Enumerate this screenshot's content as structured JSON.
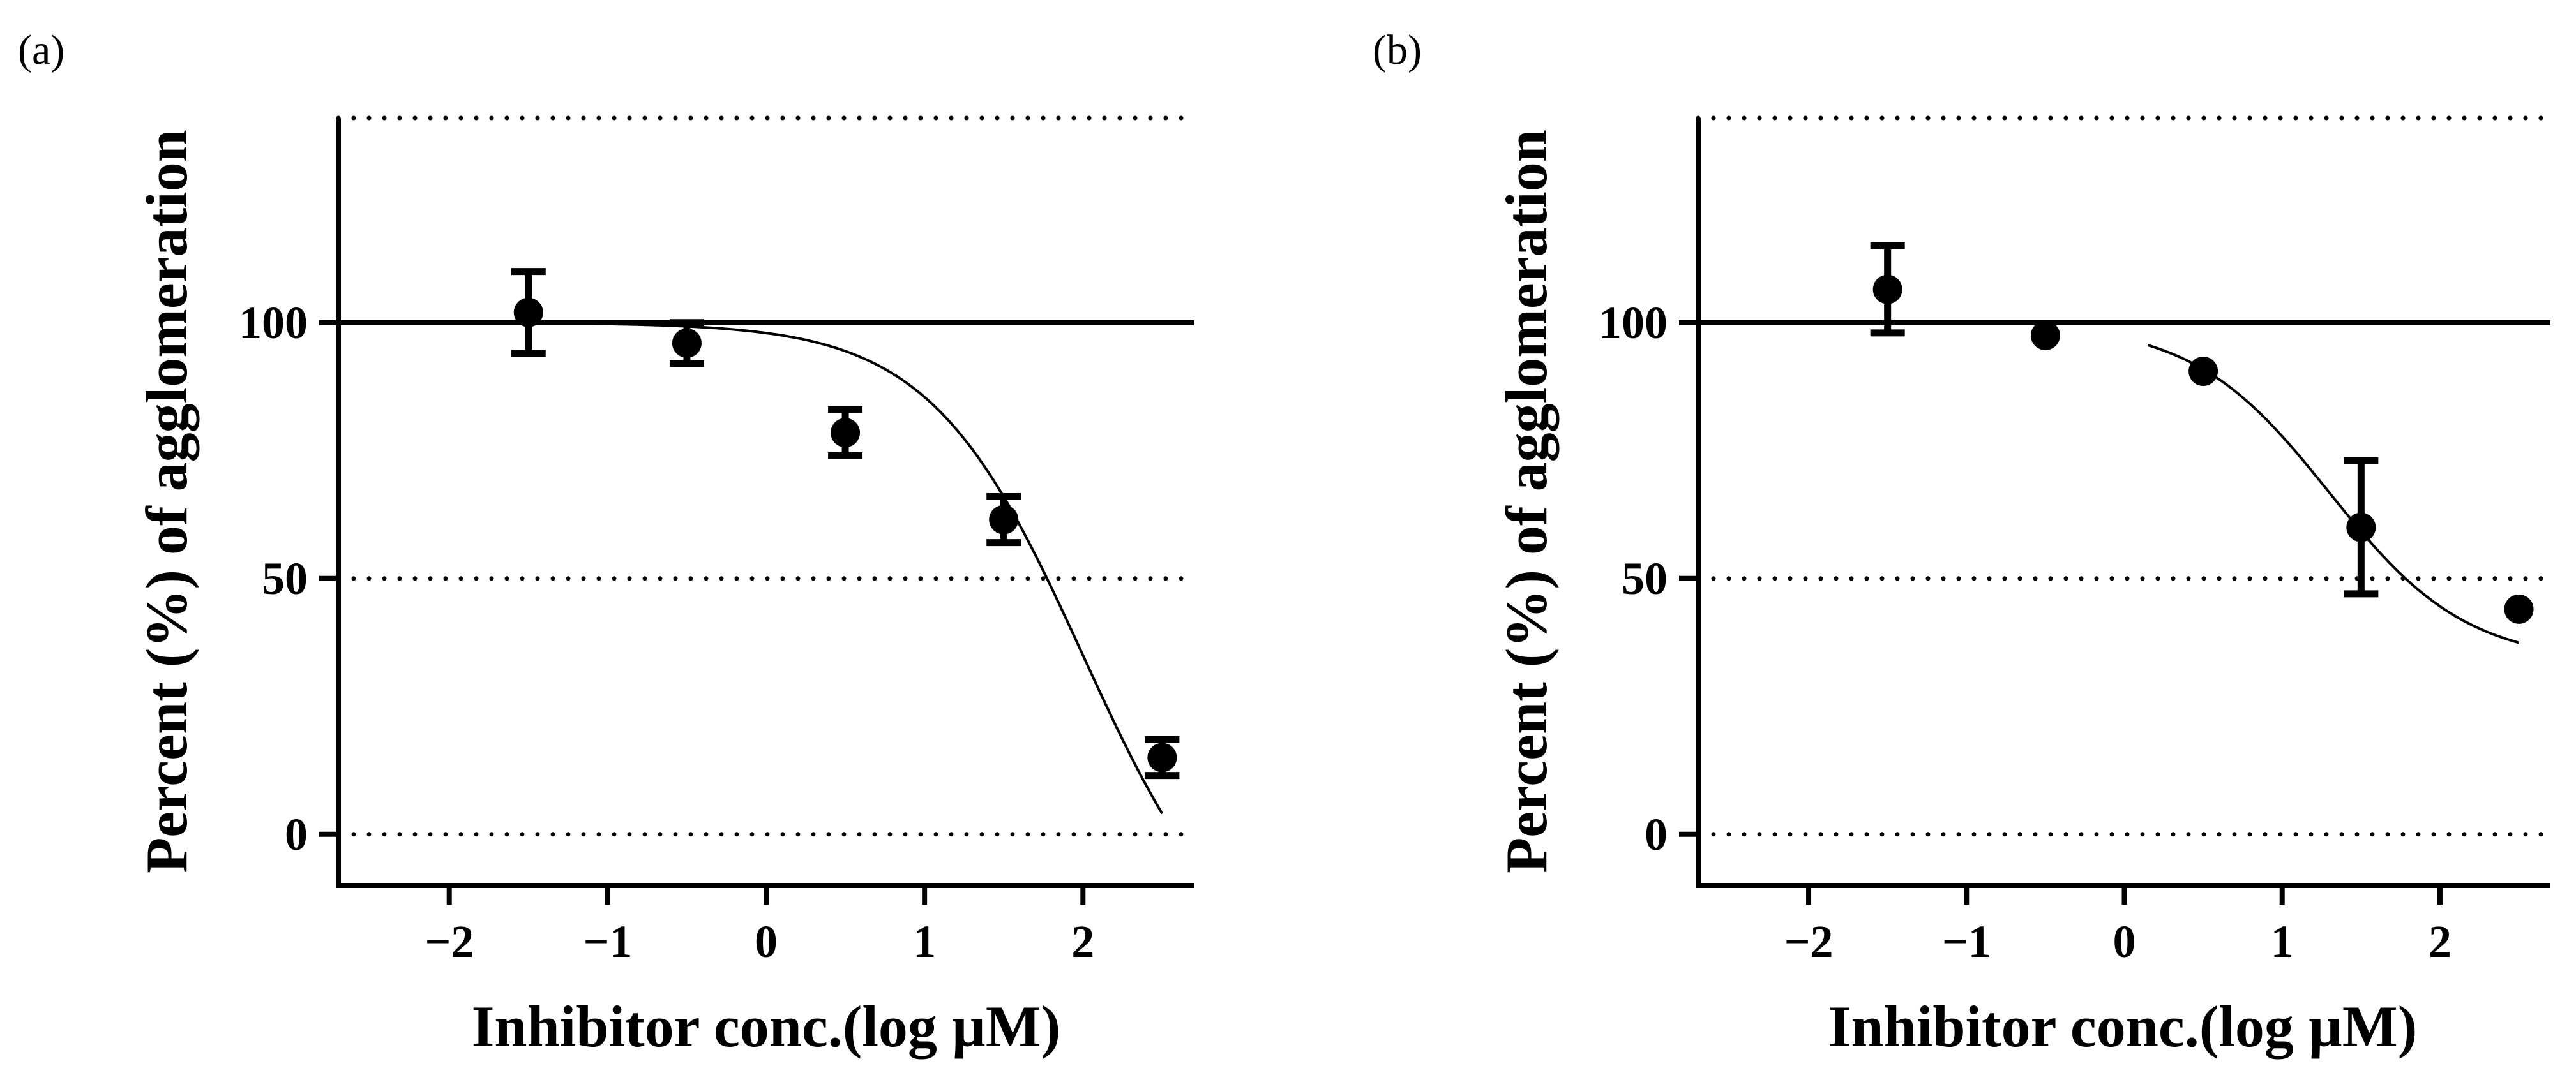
{
  "chart_data": [
    {
      "type": "scatter",
      "panel_label": "(a)",
      "xlabel": "Inhibitor conc.(log µM)",
      "ylabel": "Percent (%) of agglomeration",
      "xlim": [
        -2.7,
        2.7
      ],
      "ylim": [
        -10,
        140
      ],
      "x_ticks": [
        -2,
        -1,
        0,
        1,
        2
      ],
      "x_tick_labels": [
        "−2",
        "−1",
        "0",
        "1",
        "2"
      ],
      "y_ticks": [
        0,
        50,
        100
      ],
      "y_tick_labels": [
        "0",
        "50",
        "100"
      ],
      "dotted_reference_lines": [
        0,
        50,
        140
      ],
      "solid_reference_line": 100,
      "points": [
        {
          "x": -1.5,
          "y": 102,
          "err": 8
        },
        {
          "x": -0.5,
          "y": 96,
          "err": 4
        },
        {
          "x": 0.5,
          "y": 78.5,
          "err": 4.5
        },
        {
          "x": 1.5,
          "y": 61.5,
          "err": 4.5
        },
        {
          "x": 2.5,
          "y": 15,
          "err": 3.5
        }
      ],
      "fit_curve": {
        "top": 100,
        "bottom": -30,
        "log_ic50": 2.0,
        "hill": 0.9,
        "x_range": [
          -1.5,
          2.5
        ]
      }
    },
    {
      "type": "scatter",
      "panel_label": "(b)",
      "xlabel": "Inhibitor conc.(log µM)",
      "ylabel": "Percent (%) of agglomeration",
      "xlim": [
        -2.7,
        2.7
      ],
      "ylim": [
        -10,
        140
      ],
      "x_ticks": [
        -2,
        -1,
        0,
        1,
        2
      ],
      "x_tick_labels": [
        "−2",
        "−1",
        "0",
        "1",
        "2"
      ],
      "y_ticks": [
        0,
        50,
        100
      ],
      "y_tick_labels": [
        "0",
        "50",
        "100"
      ],
      "dotted_reference_lines": [
        0,
        50,
        140
      ],
      "solid_reference_line": 100,
      "points": [
        {
          "x": -1.5,
          "y": 106.5,
          "err": 8.5
        },
        {
          "x": -0.5,
          "y": 97.5,
          "err": 0
        },
        {
          "x": 0.5,
          "y": 90.5,
          "err": 0
        },
        {
          "x": 1.5,
          "y": 60,
          "err": 13
        },
        {
          "x": 2.5,
          "y": 44,
          "err": 0
        }
      ],
      "fit_curve": {
        "top": 100,
        "bottom": 33.5,
        "log_ic50": 1.3,
        "hill": 1.0,
        "x_range": [
          0.15,
          2.5
        ]
      }
    }
  ]
}
